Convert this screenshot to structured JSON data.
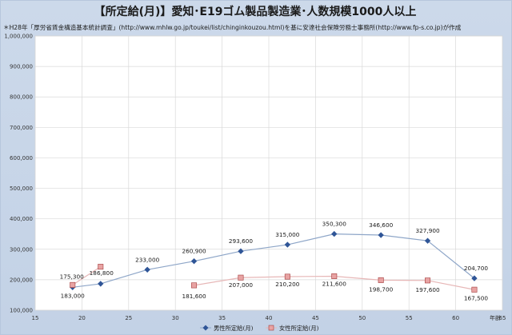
{
  "title": "【所定給(月)】愛知･E19ゴム製品製造業･人数規模1000人以上",
  "source": "＊H28年「厚労省賃金構造基本統計調査」(http://www.mhlw.go.jp/toukei/list/chinginkouzou.html)を基に安達社会保険労務士事務所(http://www.fp-s.co.jp)が作成",
  "colors": {
    "male": "#2f5597",
    "male_line": "#8ea6c8",
    "female_fill": "#e8a3a3",
    "female_stroke": "#a33b3b",
    "female_line": "#e7b7b7"
  },
  "chart_data": {
    "type": "line",
    "xlabel": "年齢",
    "ylabel": "",
    "xlim": [
      15,
      65
    ],
    "ylim": [
      100000,
      1000000
    ],
    "x_ticks": [
      "15",
      "20",
      "25",
      "30",
      "35",
      "40",
      "45",
      "50",
      "55",
      "60",
      "65"
    ],
    "y_ticks": [
      "100,000",
      "200,000",
      "300,000",
      "400,000",
      "500,000",
      "600,000",
      "700,000",
      "800,000",
      "900,000",
      "1,000,000"
    ],
    "grid": true,
    "legend": "bottom",
    "series": [
      {
        "name": "男性所定給(月)",
        "x": [
          19,
          22,
          27,
          32,
          37,
          42,
          47,
          52,
          57,
          62
        ],
        "y": [
          175300,
          186800,
          233000,
          260900,
          293600,
          315000,
          350300,
          346600,
          327900,
          204700
        ],
        "labels": [
          "175,300",
          "186,800",
          "233,000",
          "260,900",
          "293,600",
          "315,000",
          "350,300",
          "346,600",
          "327,900",
          "204,700"
        ]
      },
      {
        "name": "女性所定給(月)",
        "x": [
          19,
          22,
          32,
          37,
          42,
          47,
          52,
          57,
          62
        ],
        "y": [
          183000,
          242700,
          181600,
          207000,
          210200,
          211600,
          198700,
          197600,
          167500
        ],
        "labels": [
          "183,000",
          "",
          "181,600",
          "207,000",
          "210,200",
          "211,600",
          "198,700",
          "197,600",
          "167,500"
        ]
      }
    ]
  }
}
